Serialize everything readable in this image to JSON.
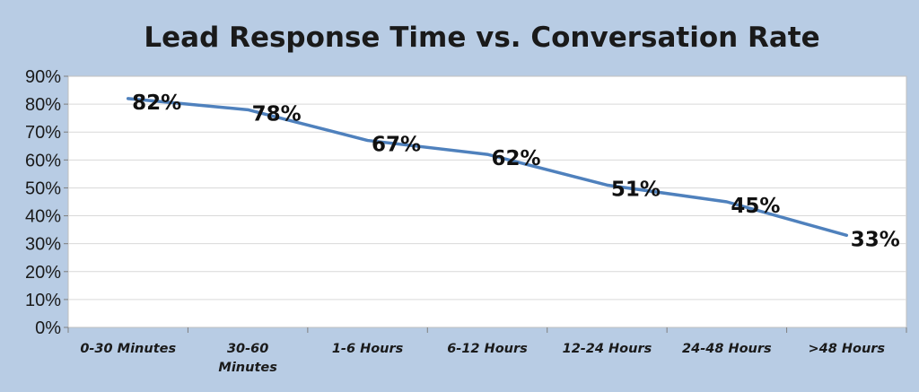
{
  "chart_data": {
    "type": "line",
    "title": "Lead Response Time vs. Conversation Rate",
    "xlabel": "",
    "ylabel": "",
    "categories": [
      "0-30 Minutes",
      "30-60 Minutes",
      "1-6 Hours",
      "6-12 Hours",
      "12-24 Hours",
      "24-48 Hours",
      ">48 Hours"
    ],
    "category_lines": [
      [
        "0-30 Minutes"
      ],
      [
        "30-60",
        "Minutes"
      ],
      [
        "1-6 Hours"
      ],
      [
        "6-12 Hours"
      ],
      [
        "12-24 Hours"
      ],
      [
        "24-48 Hours"
      ],
      [
        ">48 Hours"
      ]
    ],
    "series": [
      {
        "name": "Conversation Rate",
        "values": [
          82,
          78,
          67,
          62,
          51,
          45,
          33
        ],
        "color": "#4f81bd"
      }
    ],
    "data_labels": [
      "82%",
      "78%",
      "67%",
      "62%",
      "51%",
      "45%",
      "33%"
    ],
    "ylim": [
      0,
      90
    ],
    "yticks": [
      0,
      10,
      20,
      30,
      40,
      50,
      60,
      70,
      80,
      90
    ],
    "ytick_labels": [
      "0%",
      "10%",
      "20%",
      "30%",
      "40%",
      "50%",
      "60%",
      "70%",
      "80%",
      "90%"
    ],
    "grid": true,
    "legend": "none",
    "colors": {
      "background": "#b8cce4",
      "plot_area": "#ffffff",
      "line": "#4f81bd"
    }
  }
}
